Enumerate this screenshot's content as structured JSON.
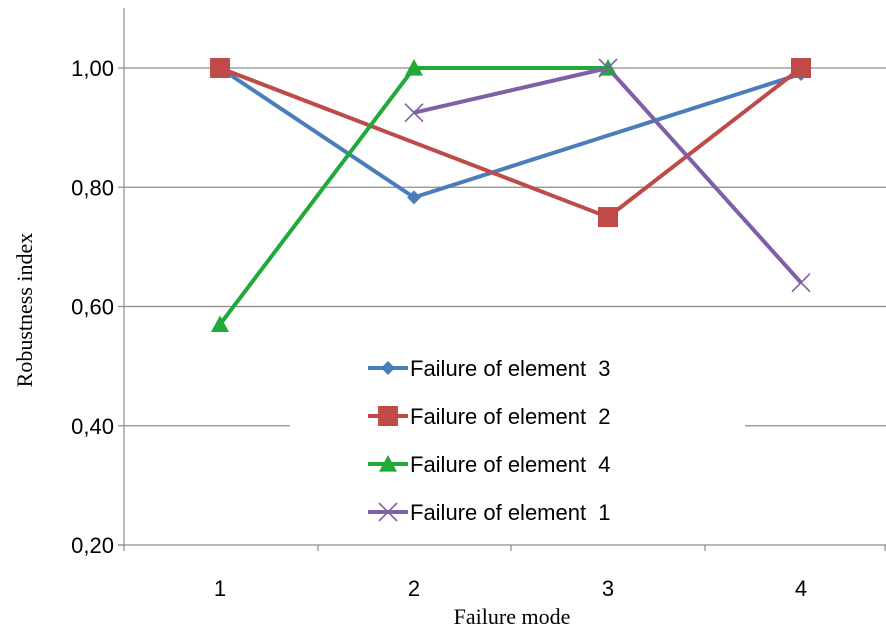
{
  "chart_data": {
    "type": "line",
    "x": [
      1,
      2,
      3,
      4
    ],
    "xlabel": "Failure mode",
    "ylabel": "Robustness index",
    "ylim": [
      0.2,
      1.0
    ],
    "y_ticks": [
      "0,20",
      "0,40",
      "0,60",
      "0,80",
      "1,00"
    ],
    "x_ticks": [
      "1",
      "2",
      "3",
      "4"
    ],
    "grid": true,
    "legend_position": "lower-center",
    "series": [
      {
        "name": "Failure of element  3",
        "color": "#4a7ebb",
        "marker": "diamond",
        "values": [
          1.0,
          0.783,
          null,
          0.99
        ]
      },
      {
        "name": "Failure of element  2",
        "color": "#be4b48",
        "marker": "square",
        "values": [
          1.0,
          null,
          0.75,
          1.0
        ]
      },
      {
        "name": "Failure of element  4",
        "color": "#1faa3a",
        "marker": "triangle",
        "values": [
          0.57,
          1.0,
          1.0,
          null
        ]
      },
      {
        "name": "Failure of element  1",
        "color": "#7f5fa5",
        "marker": "x",
        "values": [
          null,
          0.925,
          1.0,
          0.64
        ]
      }
    ]
  }
}
